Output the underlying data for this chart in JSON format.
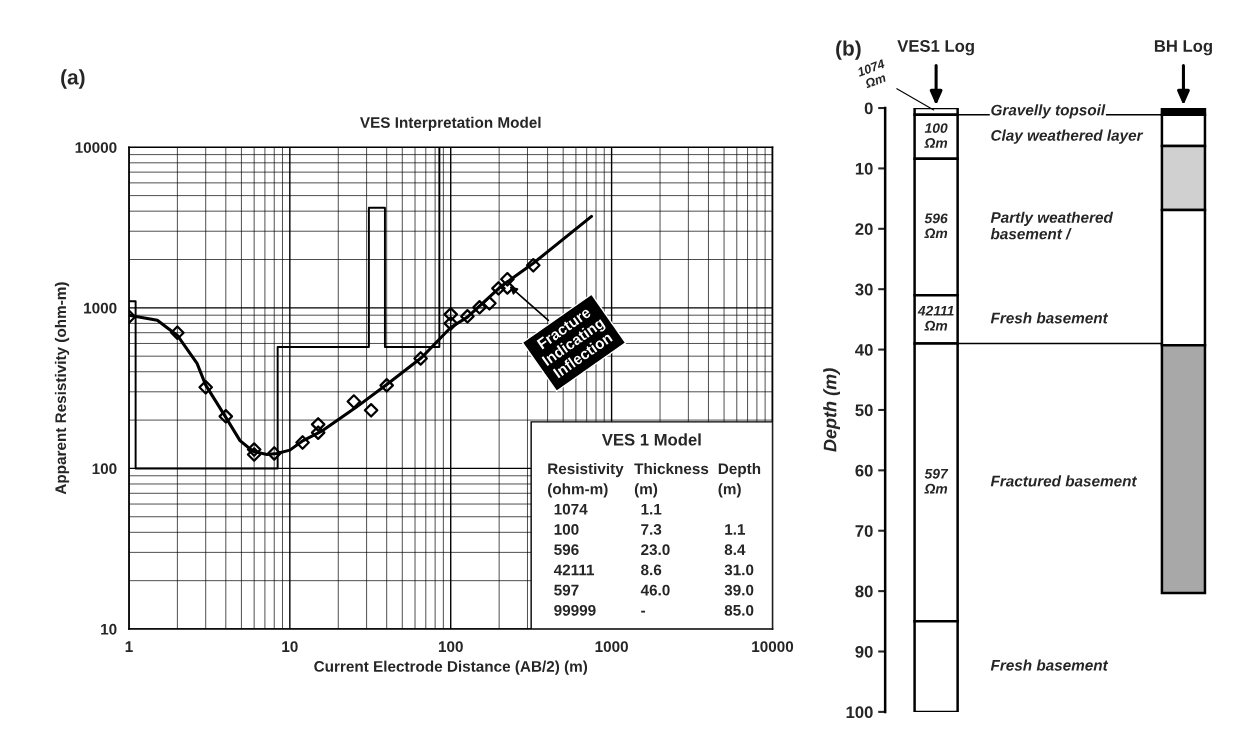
{
  "chart_data": [
    {
      "type": "scatter",
      "title": "VES Interpretation Model",
      "xlabel": "Current Electrode Distance (AB/2) (m)",
      "ylabel": "Apparent Resistivity (ohm-m)",
      "log": "xy",
      "xlim": [
        1,
        10000
      ],
      "ylim": [
        10,
        10000
      ],
      "xticks": [
        1,
        10,
        100,
        1000,
        10000
      ],
      "yticks": [
        10,
        100,
        1000,
        10000
      ],
      "grid": true,
      "series": [
        {
          "type": "scatter",
          "marker": "diamond",
          "color": "#000000",
          "x": [
            1,
            2,
            3,
            4,
            6,
            6,
            8,
            12,
            15,
            15,
            25,
            32,
            40,
            65,
            100,
            100,
            127,
            151,
            174,
            198,
            225,
            225,
            326
          ],
          "values": [
            880,
            700,
            320,
            211,
            131,
            122,
            124,
            145,
            188,
            167,
            261,
            230,
            329,
            484,
            911,
            800,
            885,
            1007,
            1067,
            1322,
            1506,
            1340,
            1841
          ]
        },
        {
          "type": "line",
          "color": "#000000",
          "x": [
            1,
            1.5,
            2,
            2.65,
            3,
            4,
            4.9,
            5.9,
            7.2,
            8.3,
            10,
            12.1,
            16,
            25.8,
            41,
            66,
            100,
            127,
            203,
            326,
            750
          ],
          "values": [
            900,
            837,
            673,
            451,
            330,
            208,
            149,
            128,
            122,
            124,
            130,
            149,
            172,
            240,
            339,
            491,
            754,
            875,
            1347,
            1895,
            3710
          ]
        },
        {
          "type": "step",
          "color": "#000000",
          "x": [
            1,
            1.1,
            8.4,
            31,
            39,
            85
          ],
          "values": [
            1100,
            100,
            570,
            4200,
            570,
            10000
          ]
        }
      ],
      "annotations": [
        "(a)",
        "VES 1 Model",
        "Resistivity\tThickness\tDepth",
        "(ohm-m)\t(m)\t(m)",
        "1074\t1.1",
        "100\t7.3\t1.1",
        "596\t23.0\t8.4",
        "42111\t8.6\t31.0",
        "597\t46.0\t39.0",
        "99999\t-\t85.0",
        {
          "text": "Fracture\nIndicating\nInflection",
          "x": 225,
          "y": 1400
        }
      ]
    },
    {
      "type": "bar",
      "stacked": true,
      "ylabel": "Depth (m)",
      "categories": [
        "VES1 Log",
        "BH Log"
      ],
      "ylim": [
        100,
        0
      ],
      "yticks": [
        0,
        10,
        20,
        30,
        40,
        50,
        60,
        70,
        80,
        90,
        100
      ],
      "series": [
        {
          "values": [
            1.1,
            1.1
          ],
          "colors": [
            "#ffffff",
            "#000000"
          ]
        },
        {
          "values": [
            7.3,
            5.2
          ],
          "colors": [
            "#ffffff",
            "#ffffff"
          ]
        },
        {
          "values": [
            22.6,
            10.6
          ],
          "colors": [
            "#ffffff",
            "#d0d0d0"
          ]
        },
        {
          "values": [
            8.0,
            22.4
          ],
          "colors": [
            "#ffffff",
            "#ffffff"
          ]
        },
        {
          "values": [
            46.0,
            41.0
          ],
          "colors": [
            "#ffffff",
            "#a8a8a8"
          ]
        },
        {
          "values": [
            15.0,
            null
          ],
          "colors": [
            "#ffffff",
            null
          ]
        }
      ],
      "ref_lines": [
        {
          "axis": "y",
          "value": 1.1,
          "color": "#000000",
          "line_style": "solid"
        },
        {
          "axis": "y",
          "value": 39,
          "color": "#000000",
          "line_style": "solid"
        }
      ],
      "annotations": [
        "(b)",
        {
          "text": "1074\nΩm",
          "x": "VES1 Log",
          "y": 0.55
        },
        "100\nΩm",
        "596\nΩm",
        "42111\nΩm",
        "597\nΩm",
        "Gravelly topsoil",
        "Clay weathered layer",
        "Partly weathered\nbasement /",
        "Fresh basement",
        "Fractured basement",
        "Fresh basement"
      ]
    }
  ]
}
